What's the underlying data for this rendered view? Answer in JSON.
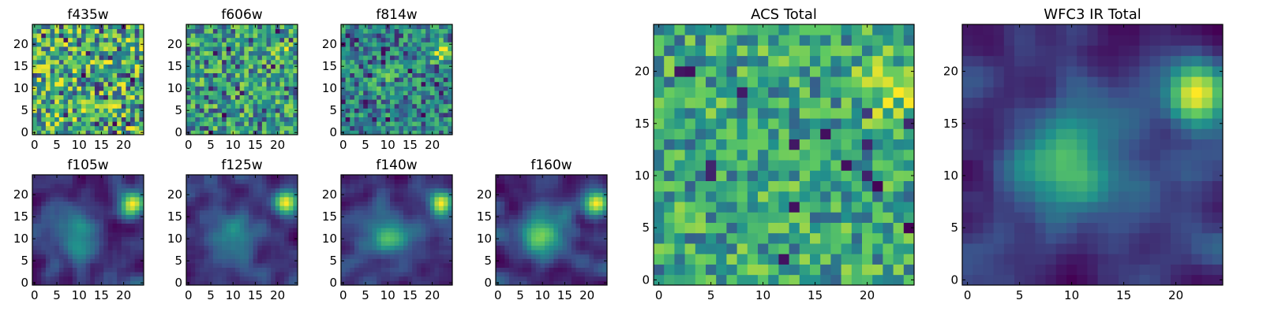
{
  "figure": {
    "title": "",
    "panels": [
      {
        "title": "f435w"
      },
      {
        "title": "f606w"
      },
      {
        "title": "f814w"
      },
      {
        "title": "f105w"
      },
      {
        "title": "f125w"
      },
      {
        "title": "f140w"
      },
      {
        "title": "f160w"
      },
      {
        "title": "ACS Total"
      },
      {
        "title": "WFC3 IR Total"
      }
    ]
  },
  "colors": {
    "colormap": [
      "#440154",
      "#3b528b",
      "#21918c",
      "#5ec962",
      "#fde725"
    ],
    "axis": "#000000",
    "background": "#ffffff"
  },
  "chart_data": [
    {
      "type": "heatmap",
      "title": "f435w",
      "grid": [
        25,
        25
      ],
      "xlim": [
        0,
        24
      ],
      "ylim": [
        0,
        24
      ],
      "xticks": [
        0,
        5,
        10,
        15,
        20
      ],
      "yticks": [
        0,
        5,
        10,
        15,
        20
      ],
      "colormap": "viridis",
      "pattern": "noise",
      "features": []
    },
    {
      "type": "heatmap",
      "title": "f606w",
      "grid": [
        25,
        25
      ],
      "xlim": [
        0,
        24
      ],
      "ylim": [
        0,
        24
      ],
      "xticks": [
        0,
        5,
        10,
        15,
        20
      ],
      "yticks": [
        0,
        5,
        10,
        15,
        20
      ],
      "colormap": "viridis",
      "pattern": "noise",
      "features": [
        {
          "x": 21,
          "y": 18,
          "peak": 0.25,
          "width": 2
        }
      ]
    },
    {
      "type": "heatmap",
      "title": "f814w",
      "grid": [
        25,
        25
      ],
      "xlim": [
        0,
        24
      ],
      "ylim": [
        0,
        24
      ],
      "xticks": [
        0,
        5,
        10,
        15,
        20
      ],
      "yticks": [
        0,
        5,
        10,
        15,
        20
      ],
      "colormap": "viridis",
      "pattern": "noise",
      "features": [
        {
          "x": 22,
          "y": 18,
          "peak": 0.55,
          "width": 1.8
        },
        {
          "x": 10,
          "y": 11,
          "peak": 0.2,
          "width": 3
        }
      ]
    },
    {
      "type": "heatmap",
      "title": "f105w",
      "grid": [
        25,
        25
      ],
      "xlim": [
        0,
        24
      ],
      "ylim": [
        0,
        24
      ],
      "xticks": [
        0,
        5,
        10,
        15,
        20
      ],
      "yticks": [
        0,
        5,
        10,
        15,
        20
      ],
      "colormap": "viridis",
      "pattern": "smooth",
      "features": [
        {
          "x": 22,
          "y": 18,
          "peak": 0.75,
          "width": 2
        },
        {
          "x": 10,
          "y": 11,
          "peak": 0.35,
          "width": 3.5
        }
      ]
    },
    {
      "type": "heatmap",
      "title": "f125w",
      "grid": [
        25,
        25
      ],
      "xlim": [
        0,
        24
      ],
      "ylim": [
        0,
        24
      ],
      "xticks": [
        0,
        5,
        10,
        15,
        20
      ],
      "yticks": [
        0,
        5,
        10,
        15,
        20
      ],
      "colormap": "viridis",
      "pattern": "smooth",
      "features": [
        {
          "x": 22,
          "y": 18,
          "peak": 0.8,
          "width": 2
        },
        {
          "x": 10,
          "y": 11,
          "peak": 0.45,
          "width": 3.5
        }
      ]
    },
    {
      "type": "heatmap",
      "title": "f140w",
      "grid": [
        25,
        25
      ],
      "xlim": [
        0,
        24
      ],
      "ylim": [
        0,
        24
      ],
      "xticks": [
        0,
        5,
        10,
        15,
        20
      ],
      "yticks": [
        0,
        5,
        10,
        15,
        20
      ],
      "colormap": "viridis",
      "pattern": "smooth",
      "features": [
        {
          "x": 22,
          "y": 18,
          "peak": 0.85,
          "width": 2
        },
        {
          "x": 10,
          "y": 11,
          "peak": 0.5,
          "width": 3.5
        }
      ]
    },
    {
      "type": "heatmap",
      "title": "f160w",
      "grid": [
        25,
        25
      ],
      "xlim": [
        0,
        24
      ],
      "ylim": [
        0,
        24
      ],
      "xticks": [
        0,
        5,
        10,
        15,
        20
      ],
      "yticks": [
        0,
        5,
        10,
        15,
        20
      ],
      "colormap": "viridis",
      "pattern": "smooth",
      "features": [
        {
          "x": 22,
          "y": 18,
          "peak": 0.9,
          "width": 2
        },
        {
          "x": 10,
          "y": 11,
          "peak": 0.6,
          "width": 3.5
        }
      ]
    },
    {
      "type": "heatmap",
      "title": "ACS Total",
      "grid": [
        25,
        25
      ],
      "xlim": [
        0,
        24
      ],
      "ylim": [
        0,
        24
      ],
      "xticks": [
        0,
        5,
        10,
        15,
        20
      ],
      "yticks": [
        0,
        5,
        10,
        15,
        20
      ],
      "colormap": "viridis",
      "pattern": "noise-bright",
      "features": [
        {
          "x": 22,
          "y": 18,
          "peak": 0.35,
          "width": 2
        }
      ]
    },
    {
      "type": "heatmap",
      "title": "WFC3 IR Total",
      "grid": [
        25,
        25
      ],
      "xlim": [
        0,
        24
      ],
      "ylim": [
        0,
        24
      ],
      "xticks": [
        0,
        5,
        10,
        15,
        20
      ],
      "yticks": [
        0,
        5,
        10,
        15,
        20
      ],
      "colormap": "viridis",
      "pattern": "smooth",
      "features": [
        {
          "x": 22,
          "y": 18,
          "peak": 0.9,
          "width": 2.2
        },
        {
          "x": 10,
          "y": 11,
          "peak": 0.55,
          "width": 3.8
        }
      ]
    }
  ]
}
